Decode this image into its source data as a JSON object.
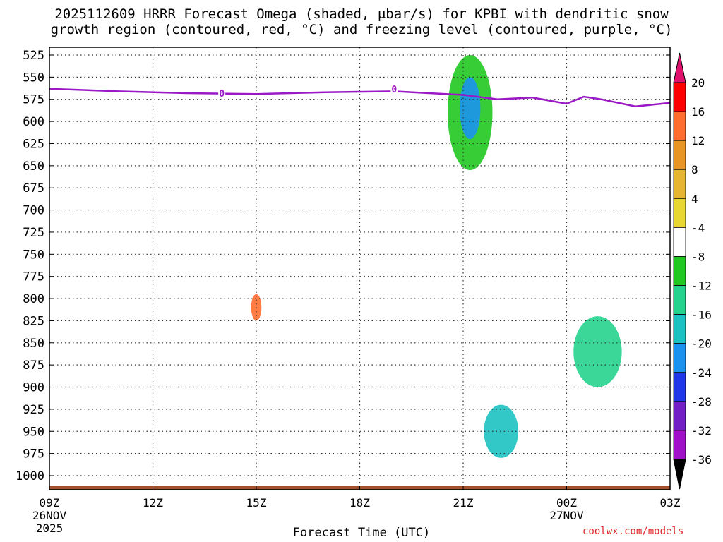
{
  "chart_data": {
    "type": "heatmap",
    "title_line1": "2025112609 HRRR Forecast Omega (shaded, μbar/s) for KPBI with dendritic snow",
    "title_line2": "growth region (contoured, red, °C) and freezing level (contoured, purple, °C)",
    "xlabel": "Forecast Time (UTC)",
    "credit": "coolwx.com/models",
    "x_hours": [
      0,
      24
    ],
    "x_ticks": [
      {
        "hour": 0,
        "label": "09Z",
        "sub": "26NOV",
        "sub2": "2025"
      },
      {
        "hour": 3,
        "label": "12Z"
      },
      {
        "hour": 6,
        "label": "15Z"
      },
      {
        "hour": 9,
        "label": "18Z"
      },
      {
        "hour": 12,
        "label": "21Z"
      },
      {
        "hour": 15,
        "label": "00Z",
        "sub": "27NOV"
      },
      {
        "hour": 18,
        "label": "03Z"
      }
    ],
    "y_ticks": [
      525,
      550,
      575,
      600,
      625,
      650,
      675,
      700,
      725,
      750,
      775,
      800,
      825,
      850,
      875,
      900,
      925,
      950,
      975,
      1000
    ],
    "ylim_hpa": [
      520,
      1020
    ],
    "colorbar": {
      "levels": [
        20,
        16,
        12,
        8,
        4,
        -4,
        -8,
        -12,
        -16,
        -20,
        -24,
        -28,
        -32,
        -36
      ],
      "colors": [
        "#ff0000",
        "#ff6e2e",
        "#e89526",
        "#e6b532",
        "#e8d633",
        "#ffffff",
        "#21c821",
        "#25d38e",
        "#1cc2c2",
        "#1b93ee",
        "#1f37e8",
        "#7220c6",
        "#a010c8",
        "#aaaaaa"
      ],
      "top_arrow_color": "#e0106d",
      "bottom_arrow_color": "#000000"
    },
    "freezing_level": {
      "label": "0",
      "color": "#9a18c6",
      "points": [
        [
          0,
          563
        ],
        [
          2,
          566
        ],
        [
          4,
          568
        ],
        [
          6,
          569
        ],
        [
          8,
          567
        ],
        [
          10,
          566
        ],
        [
          12,
          570
        ],
        [
          13,
          575
        ],
        [
          14,
          573
        ],
        [
          15,
          580
        ],
        [
          15.5,
          572
        ],
        [
          16,
          575
        ],
        [
          17,
          583
        ],
        [
          18,
          579
        ]
      ]
    },
    "omega_regions": [
      {
        "name": "upper-ascent-21z",
        "value": -8,
        "center": [
          12.2,
          590
        ],
        "halfwidth": [
          0.65,
          65
        ],
        "color": "#21c821"
      },
      {
        "name": "upper-ascent-21z-core",
        "value": -16,
        "center": [
          12.2,
          585
        ],
        "halfwidth": [
          0.3,
          35
        ],
        "color": "#1b93ee"
      },
      {
        "name": "lower-ascent-22z",
        "value": -12,
        "center": [
          13.1,
          950
        ],
        "halfwidth": [
          0.5,
          30
        ],
        "color": "#1cc2c2"
      },
      {
        "name": "lower-ascent-01z",
        "value": -12,
        "center": [
          15.9,
          860
        ],
        "halfwidth": [
          0.7,
          40
        ],
        "color": "#25d38e"
      },
      {
        "name": "descent-15z-core",
        "value": 16,
        "center": [
          6.0,
          810
        ],
        "halfwidth": [
          0.15,
          15
        ],
        "color": "#ff6e2e"
      }
    ]
  }
}
